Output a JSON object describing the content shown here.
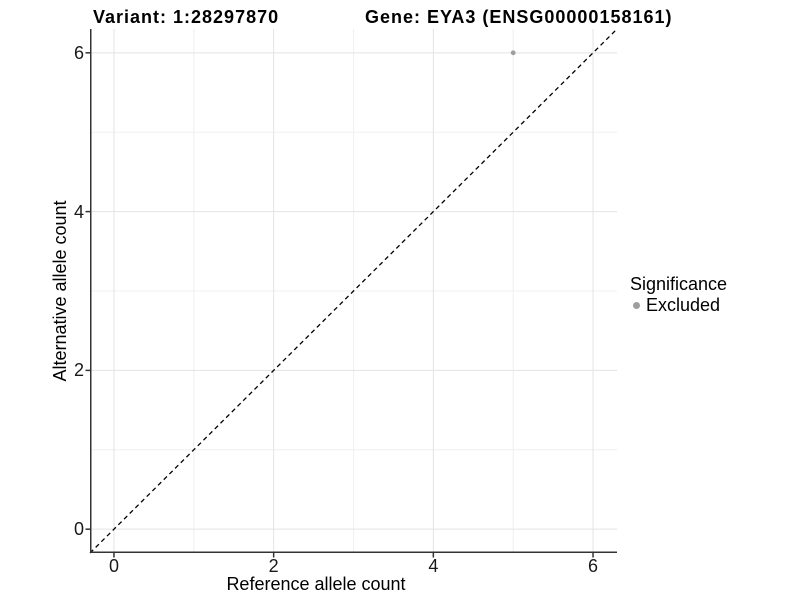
{
  "chart_data": {
    "type": "scatter",
    "title_left": "Variant: 1:28297870",
    "title_right": "Gene: EYA3 (ENSG00000158161)",
    "xlabel": "Reference allele count",
    "ylabel": "Alternative allele count",
    "xlim": [
      -0.3,
      6.3
    ],
    "ylim": [
      -0.3,
      6.3
    ],
    "x_ticks": [
      0,
      2,
      4,
      6
    ],
    "y_ticks": [
      0,
      2,
      4,
      6
    ],
    "x_minor_gridlines": [
      1,
      3,
      5
    ],
    "y_minor_gridlines": [
      1,
      3,
      5
    ],
    "grid": "major and minor gridlines on white background",
    "series": [
      {
        "name": "Excluded",
        "color": "#9e9e9e",
        "points": [
          {
            "x": 5,
            "y": 6
          }
        ]
      }
    ],
    "reference_line": {
      "equation": "y = x",
      "style": "dashed",
      "color": "#000000"
    },
    "legend": {
      "title": "Significance",
      "position": "right",
      "items": [
        {
          "label": "Excluded",
          "color": "#9e9e9e"
        }
      ]
    }
  },
  "colors": {
    "background": "#ffffff",
    "axis_line": "#333333",
    "major_grid": "#e3e3e3",
    "minor_grid": "#f0f0f0",
    "text": "#000000",
    "point": "#9e9e9e"
  }
}
